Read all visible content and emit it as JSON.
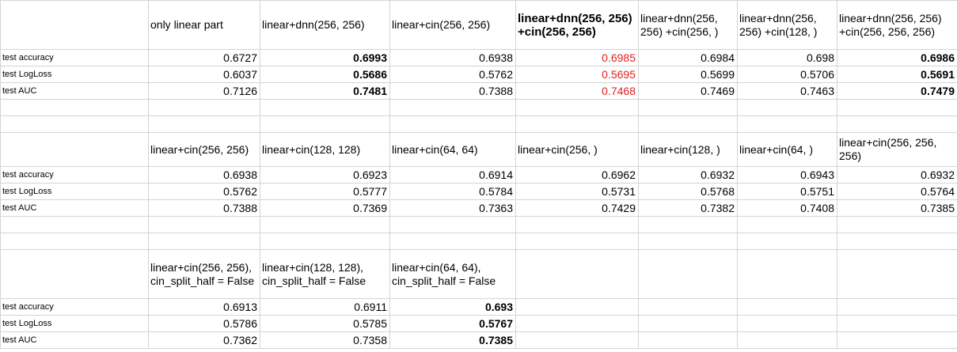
{
  "sections": [
    {
      "headers": [
        "only linear part",
        "linear+dnn(256, 256)",
        "linear+cin(256, 256)",
        "linear+dnn(256, 256) +cin(256, 256)",
        "linear+dnn(256, 256) +cin(256, )",
        "linear+dnn(256, 256) +cin(128, )",
        "linear+dnn(256, 256) +cin(256, 256, 256)"
      ],
      "rows": [
        {
          "label": "test accuracy",
          "values": [
            "0.6727",
            "0.6993",
            "0.6938",
            "0.6985",
            "0.6984",
            "0.698",
            "0.6986"
          ]
        },
        {
          "label": "test LogLoss",
          "values": [
            "0.6037",
            "0.5686",
            "0.5762",
            "0.5695",
            "0.5699",
            "0.5706",
            "0.5691"
          ]
        },
        {
          "label": "test AUC",
          "values": [
            "0.7126",
            "0.7481",
            "0.7388",
            "0.7468",
            "0.7469",
            "0.7463",
            "0.7479"
          ]
        }
      ]
    },
    {
      "headers": [
        "linear+cin(256, 256)",
        "linear+cin(128, 128)",
        "linear+cin(64, 64)",
        "linear+cin(256, )",
        "linear+cin(128, )",
        "linear+cin(64, )",
        "linear+cin(256, 256, 256)"
      ],
      "rows": [
        {
          "label": "test accuracy",
          "values": [
            "0.6938",
            "0.6923",
            "0.6914",
            "0.6962",
            "0.6932",
            "0.6943",
            "0.6932"
          ]
        },
        {
          "label": "test LogLoss",
          "values": [
            "0.5762",
            "0.5777",
            "0.5784",
            "0.5731",
            "0.5768",
            "0.5751",
            "0.5764"
          ]
        },
        {
          "label": "test AUC",
          "values": [
            "0.7388",
            "0.7369",
            "0.7363",
            "0.7429",
            "0.7382",
            "0.7408",
            "0.7385"
          ]
        }
      ]
    },
    {
      "headers": [
        "linear+cin(256, 256), cin_split_half = False",
        "linear+cin(128, 128), cin_split_half = False",
        "linear+cin(64, 64), cin_split_half = False",
        "",
        "",
        "",
        ""
      ],
      "rows": [
        {
          "label": "test accuracy",
          "values": [
            "0.6913",
            "0.6911",
            "0.693",
            "",
            "",
            "",
            ""
          ]
        },
        {
          "label": "test LogLoss",
          "values": [
            "0.5786",
            "0.5785",
            "0.5767",
            "",
            "",
            "",
            ""
          ]
        },
        {
          "label": "test AUC",
          "values": [
            "0.7362",
            "0.7358",
            "0.7385",
            "",
            "",
            "",
            ""
          ]
        }
      ]
    }
  ],
  "colors": {
    "highlight_red": "#e02020",
    "grid": "#d4d4d4"
  }
}
